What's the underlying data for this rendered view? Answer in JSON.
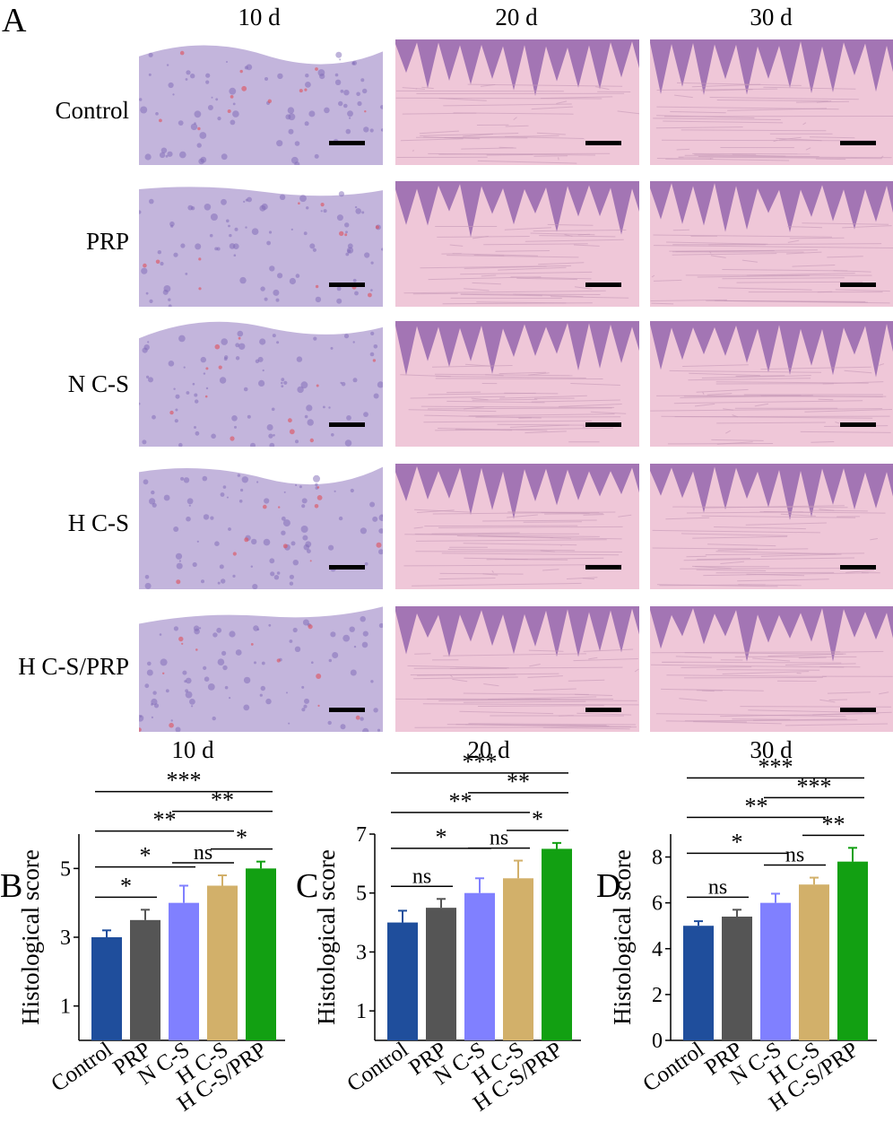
{
  "figure": {
    "panel_a_label": "A",
    "time_points": [
      "10 d",
      "20 d",
      "30 d"
    ],
    "groups": [
      "Control",
      "PRP",
      "N C-S",
      "H C-S",
      "H C-S/PRP"
    ],
    "colors": {
      "Control": "#1f4e9c",
      "PRP": "#555555",
      "N C-S": "#8080ff",
      "H C-S": "#d2b06a",
      "H C-S/PRP": "#12a012",
      "tissue_early": "#b9a8d6",
      "tissue_epidermis": "#8a5aa8",
      "tissue_dermis": "#efc7d8"
    }
  },
  "chart_data": [
    {
      "type": "bar",
      "panel_letter": "B",
      "title": "10 d",
      "xlabel": "",
      "ylabel": "Histological score",
      "ylim": [
        0,
        6
      ],
      "yticks": [
        1,
        3,
        5
      ],
      "categories": [
        "Control",
        "PRP",
        "N C-S",
        "H C-S",
        "H C-S/PRP"
      ],
      "values": [
        3.0,
        3.5,
        4.0,
        4.5,
        5.0
      ],
      "errors": [
        0.2,
        0.3,
        0.5,
        0.3,
        0.2
      ],
      "significance": [
        {
          "from": 0,
          "to": 1,
          "label": "*"
        },
        {
          "from": 0,
          "to": 2,
          "label": "*"
        },
        {
          "from": 2,
          "to": 3,
          "label": "ns"
        },
        {
          "from": 0,
          "to": 3,
          "label": "**"
        },
        {
          "from": 3,
          "to": 4,
          "label": "*"
        },
        {
          "from": 2,
          "to": 4,
          "label": "**"
        },
        {
          "from": 0,
          "to": 4,
          "label": "***"
        }
      ]
    },
    {
      "type": "bar",
      "panel_letter": "C",
      "title": "20 d",
      "xlabel": "",
      "ylabel": "Histological score",
      "ylim": [
        0,
        7
      ],
      "yticks": [
        1,
        3,
        5,
        7
      ],
      "categories": [
        "Control",
        "PRP",
        "N C-S",
        "H C-S",
        "H C-S/PRP"
      ],
      "values": [
        4.0,
        4.5,
        5.0,
        5.5,
        6.5
      ],
      "errors": [
        0.4,
        0.3,
        0.5,
        0.6,
        0.2
      ],
      "significance": [
        {
          "from": 0,
          "to": 1,
          "label": "ns"
        },
        {
          "from": 0,
          "to": 2,
          "label": "*"
        },
        {
          "from": 2,
          "to": 3,
          "label": "ns"
        },
        {
          "from": 0,
          "to": 3,
          "label": "**"
        },
        {
          "from": 3,
          "to": 4,
          "label": "*"
        },
        {
          "from": 2,
          "to": 4,
          "label": "**"
        },
        {
          "from": 0,
          "to": 4,
          "label": "***"
        }
      ]
    },
    {
      "type": "bar",
      "panel_letter": "D",
      "title": "30 d",
      "xlabel": "",
      "ylabel": "Histological score",
      "ylim": [
        0,
        9
      ],
      "yticks": [
        0,
        2,
        4,
        6,
        8
      ],
      "categories": [
        "Control",
        "PRP",
        "N C-S",
        "H C-S",
        "H C-S/PRP"
      ],
      "values": [
        5.0,
        5.4,
        6.0,
        6.8,
        7.8
      ],
      "errors": [
        0.2,
        0.3,
        0.4,
        0.3,
        0.6
      ],
      "significance": [
        {
          "from": 0,
          "to": 1,
          "label": "ns"
        },
        {
          "from": 0,
          "to": 2,
          "label": "*"
        },
        {
          "from": 2,
          "to": 3,
          "label": "ns"
        },
        {
          "from": 0,
          "to": 3,
          "label": "**"
        },
        {
          "from": 3,
          "to": 4,
          "label": "**"
        },
        {
          "from": 2,
          "to": 4,
          "label": "***"
        },
        {
          "from": 0,
          "to": 4,
          "label": "***"
        }
      ]
    }
  ]
}
